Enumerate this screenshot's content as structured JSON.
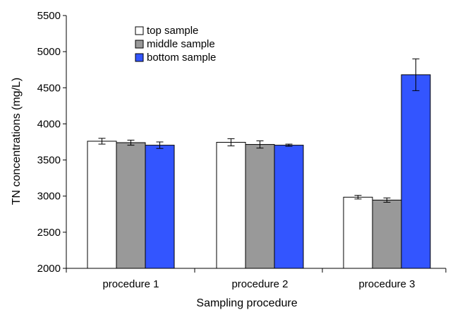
{
  "chart_data": {
    "type": "bar",
    "title": "",
    "xlabel": "Sampling procedure",
    "ylabel": "TN concentrations (mg/L)",
    "categories": [
      "procedure 1",
      "procedure 2",
      "procedure 3"
    ],
    "ylim": [
      2000,
      5500
    ],
    "yticks": [
      2000,
      2500,
      3000,
      3500,
      4000,
      4500,
      5000,
      5500
    ],
    "grid": false,
    "legend_position": "top-left",
    "series": [
      {
        "name": "top sample",
        "color": "#ffffff",
        "values": [
          3760,
          3745,
          2985
        ],
        "errors": [
          40,
          50,
          25
        ]
      },
      {
        "name": "middle sample",
        "color": "#999999",
        "values": [
          3740,
          3715,
          2945
        ],
        "errors": [
          35,
          50,
          30
        ]
      },
      {
        "name": "bottom sample",
        "color": "#3355ff",
        "values": [
          3705,
          3705,
          4680
        ],
        "errors": [
          45,
          15,
          220
        ]
      }
    ]
  }
}
